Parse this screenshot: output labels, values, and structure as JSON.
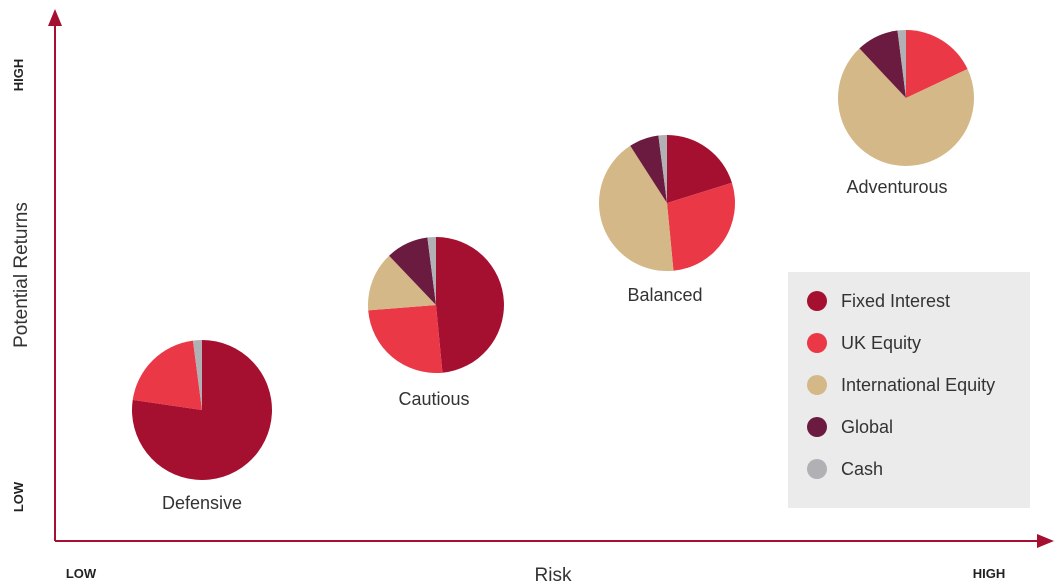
{
  "chart_data": {
    "type": "pie",
    "title": "",
    "xlabel": "Risk",
    "ylabel": "Potential Returns",
    "x_ticks": {
      "low": "LOW",
      "high": "HIGH"
    },
    "y_ticks": {
      "low": "LOW",
      "high": "HIGH"
    },
    "legend_position": "bottom-right",
    "categories": [
      "Fixed Interest",
      "UK Equity",
      "International Equity",
      "Global",
      "Cash"
    ],
    "colors": {
      "Fixed Interest": "#a51030",
      "UK Equity": "#ea3846",
      "International Equity": "#d4b887",
      "Global": "#6b1a40",
      "Cash": "#b1b1b5"
    },
    "axis_color": "#a51030",
    "portfolios": [
      {
        "name": "Defensive",
        "risk_level": 1,
        "return_level": 1,
        "values": [
          75,
          20,
          0,
          0,
          2
        ]
      },
      {
        "name": "Cautious",
        "risk_level": 2,
        "return_level": 2,
        "values": [
          48,
          25,
          14,
          10,
          2
        ]
      },
      {
        "name": "Balanced",
        "risk_level": 3,
        "return_level": 3,
        "values": [
          20,
          28,
          42,
          7,
          2
        ]
      },
      {
        "name": "Adventurous",
        "risk_level": 4,
        "return_level": 4,
        "values": [
          0,
          18,
          70,
          10,
          2
        ]
      }
    ]
  }
}
